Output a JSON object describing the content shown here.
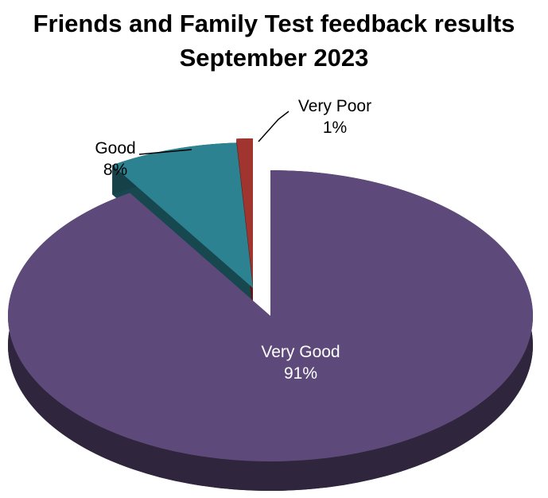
{
  "chart_data": {
    "type": "pie",
    "title": "Friends and Family Test feedback results",
    "subtitle": "September 2023",
    "categories": [
      "Very Good",
      "Good",
      "Very Poor"
    ],
    "values": [
      91,
      8,
      1
    ],
    "labels": [
      {
        "name": "Very Good",
        "pct": "91%"
      },
      {
        "name": "Good",
        "pct": "8%"
      },
      {
        "name": "Very Poor",
        "pct": "1%"
      }
    ],
    "colors": {
      "Very Good": "#5e4a7a",
      "Good": "#2c8290",
      "Very Poor": "#a0342e"
    },
    "style": "3d-exploded",
    "legend": "none"
  }
}
